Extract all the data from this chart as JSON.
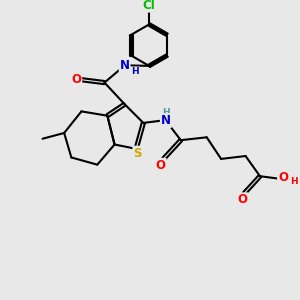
{
  "bg_color": "#e8e8e8",
  "bond_color": "#000000",
  "bond_width": 1.5,
  "colors": {
    "N": "#0000cc",
    "O": "#ff0000",
    "S": "#ccaa00",
    "Cl": "#00bb00",
    "H_teal": "#559999"
  },
  "font_size": 8.5,
  "small_font": 6.5,
  "xlim": [
    0,
    10
  ],
  "ylim": [
    0,
    10
  ]
}
